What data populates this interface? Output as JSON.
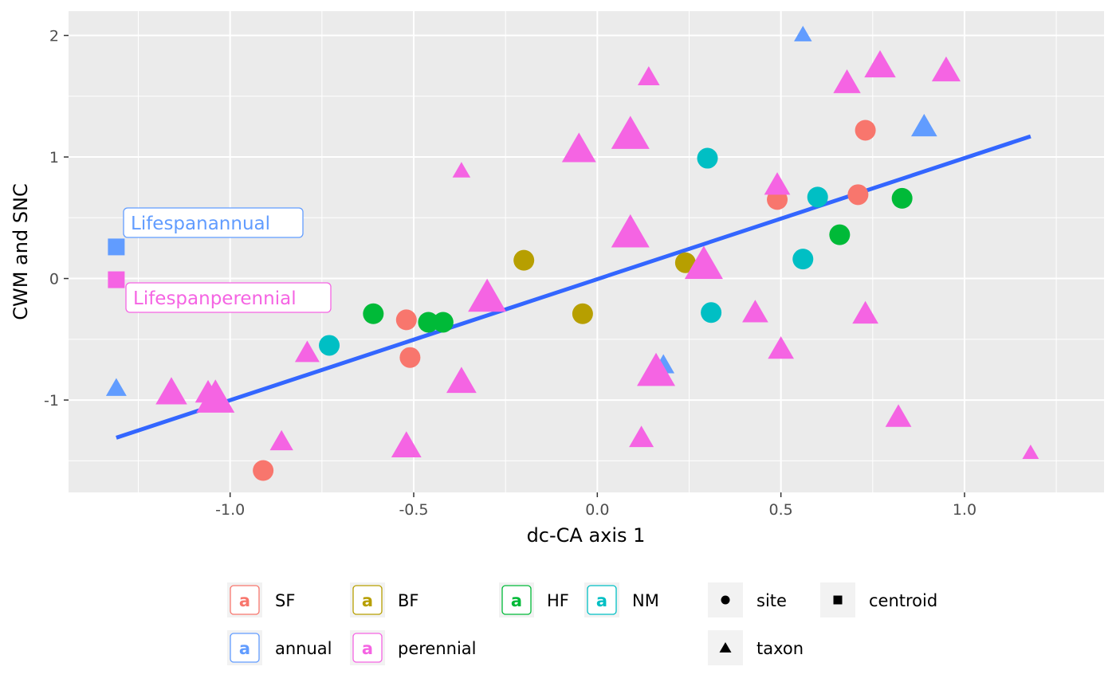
{
  "chart_data": {
    "type": "scatter",
    "title": "",
    "xlabel": "dc-CA axis 1",
    "ylabel": "CWM and SNC",
    "xlim": [
      -1.44,
      1.38
    ],
    "ylim": [
      -1.76,
      2.2
    ],
    "x_ticks": [
      -1.0,
      -0.5,
      0.0,
      0.5,
      1.0
    ],
    "x_tick_labels": [
      "-1.0",
      "-0.5",
      "0.0",
      "0.5",
      "1.0"
    ],
    "y_ticks": [
      -1,
      0,
      1,
      2
    ],
    "y_tick_labels": [
      "-1",
      "0",
      "1",
      "2"
    ],
    "grid": true,
    "colors": {
      "SF": "#F8766D",
      "BF": "#B79F00",
      "HF": "#00BA38",
      "NM": "#00BFC4",
      "annual": "#619CFF",
      "perennial": "#F564E3",
      "regression": "#3366FF",
      "panel": "#EBEBEB"
    },
    "regression_line": {
      "x": [
        -1.31,
        1.18
      ],
      "y": [
        -1.31,
        1.17
      ]
    },
    "sites": [
      {
        "x": -0.91,
        "y": -1.58,
        "group": "SF"
      },
      {
        "x": -0.52,
        "y": -0.34,
        "group": "SF"
      },
      {
        "x": -0.51,
        "y": -0.65,
        "group": "SF"
      },
      {
        "x": 0.49,
        "y": 0.65,
        "group": "SF"
      },
      {
        "x": 0.71,
        "y": 0.69,
        "group": "SF"
      },
      {
        "x": 0.73,
        "y": 1.22,
        "group": "SF"
      },
      {
        "x": -0.2,
        "y": 0.15,
        "group": "BF"
      },
      {
        "x": -0.04,
        "y": -0.29,
        "group": "BF"
      },
      {
        "x": 0.24,
        "y": 0.13,
        "group": "BF"
      },
      {
        "x": -0.61,
        "y": -0.29,
        "group": "HF"
      },
      {
        "x": -0.46,
        "y": -0.36,
        "group": "HF"
      },
      {
        "x": -0.42,
        "y": -0.36,
        "group": "HF"
      },
      {
        "x": 0.66,
        "y": 0.36,
        "group": "HF"
      },
      {
        "x": 0.83,
        "y": 0.66,
        "group": "HF"
      },
      {
        "x": -1.05,
        "y": -0.98,
        "group": "NM"
      },
      {
        "x": -0.73,
        "y": -0.55,
        "group": "NM"
      },
      {
        "x": 0.3,
        "y": 0.99,
        "group": "NM"
      },
      {
        "x": 0.31,
        "y": -0.28,
        "group": "NM"
      },
      {
        "x": 0.56,
        "y": 0.16,
        "group": "NM"
      },
      {
        "x": 0.6,
        "y": 0.67,
        "group": "NM"
      }
    ],
    "taxa": [
      {
        "x": -1.31,
        "y": -0.91,
        "group": "annual",
        "size": 0.35
      },
      {
        "x": 0.18,
        "y": -0.72,
        "group": "annual",
        "size": 0.4
      },
      {
        "x": 0.56,
        "y": 2.0,
        "group": "annual",
        "size": 0.25
      },
      {
        "x": 0.89,
        "y": 1.24,
        "group": "annual",
        "size": 0.55
      },
      {
        "x": -1.16,
        "y": -0.95,
        "group": "perennial",
        "size": 0.75
      },
      {
        "x": -1.06,
        "y": -0.95,
        "group": "perennial",
        "size": 0.55
      },
      {
        "x": -1.04,
        "y": -1.0,
        "group": "perennial",
        "size": 1.0
      },
      {
        "x": -0.86,
        "y": -1.35,
        "group": "perennial",
        "size": 0.45
      },
      {
        "x": -0.79,
        "y": -0.62,
        "group": "perennial",
        "size": 0.5
      },
      {
        "x": -0.52,
        "y": -1.39,
        "group": "perennial",
        "size": 0.7
      },
      {
        "x": -0.37,
        "y": 0.88,
        "group": "perennial",
        "size": 0.25
      },
      {
        "x": -0.37,
        "y": -0.86,
        "group": "perennial",
        "size": 0.7
      },
      {
        "x": -0.3,
        "y": -0.17,
        "group": "perennial",
        "size": 1.0
      },
      {
        "x": -0.05,
        "y": 1.05,
        "group": "perennial",
        "size": 0.85
      },
      {
        "x": 0.09,
        "y": 1.17,
        "group": "perennial",
        "size": 1.0
      },
      {
        "x": 0.09,
        "y": 0.36,
        "group": "perennial",
        "size": 1.0
      },
      {
        "x": 0.12,
        "y": -1.32,
        "group": "perennial",
        "size": 0.5
      },
      {
        "x": 0.14,
        "y": 1.65,
        "group": "perennial",
        "size": 0.4
      },
      {
        "x": 0.16,
        "y": -0.78,
        "group": "perennial",
        "size": 1.0
      },
      {
        "x": 0.29,
        "y": 0.1,
        "group": "perennial",
        "size": 1.0
      },
      {
        "x": 0.43,
        "y": -0.29,
        "group": "perennial",
        "size": 0.55
      },
      {
        "x": 0.49,
        "y": 0.76,
        "group": "perennial",
        "size": 0.55
      },
      {
        "x": 0.5,
        "y": -0.59,
        "group": "perennial",
        "size": 0.55
      },
      {
        "x": 0.68,
        "y": 1.6,
        "group": "perennial",
        "size": 0.6
      },
      {
        "x": 0.73,
        "y": -0.3,
        "group": "perennial",
        "size": 0.55
      },
      {
        "x": 0.77,
        "y": 1.74,
        "group": "perennial",
        "size": 0.75
      },
      {
        "x": 0.82,
        "y": -1.15,
        "group": "perennial",
        "size": 0.55
      },
      {
        "x": 0.95,
        "y": 1.7,
        "group": "perennial",
        "size": 0.65
      },
      {
        "x": 1.18,
        "y": -1.44,
        "group": "perennial",
        "size": 0.2
      }
    ],
    "centroids": [
      {
        "x": -1.31,
        "y": 0.26,
        "group": "annual",
        "label": "Lifespanannual"
      },
      {
        "x": -1.31,
        "y": -0.01,
        "group": "perennial",
        "label": "Lifespanperennial"
      }
    ],
    "legend": {
      "position": "bottom",
      "color_items": [
        {
          "key": "SF",
          "label": "SF",
          "glyph": "a"
        },
        {
          "key": "BF",
          "label": "BF",
          "glyph": "a"
        },
        {
          "key": "HF",
          "label": "HF",
          "glyph": "a"
        },
        {
          "key": "NM",
          "label": "NM",
          "glyph": "a"
        },
        {
          "key": "annual",
          "label": "annual",
          "glyph": "a"
        },
        {
          "key": "perennial",
          "label": "perennial",
          "glyph": "a"
        }
      ],
      "shape_items": [
        {
          "key": "site",
          "label": "site"
        },
        {
          "key": "centroid",
          "label": "centroid"
        },
        {
          "key": "taxon",
          "label": "taxon"
        }
      ]
    }
  }
}
